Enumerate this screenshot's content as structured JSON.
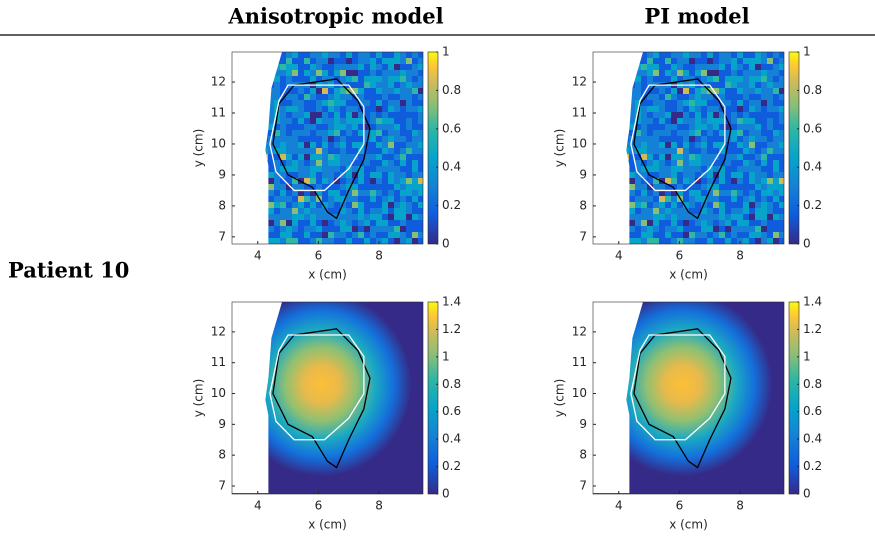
{
  "header": {
    "columns": [
      "Anisotropic model",
      "PI model"
    ]
  },
  "row_label": "Patient 10",
  "panels": [
    {
      "x_label": "x (cm)",
      "y_label": "y (cm)",
      "xlim": [
        3.15,
        9.45
      ],
      "ylim": [
        6.77,
        12.97
      ],
      "xticks": [
        4,
        6,
        8
      ],
      "yticks": [
        7,
        8,
        9,
        10,
        11,
        12
      ],
      "clim": [
        0,
        1
      ],
      "colorbar_ticks": [
        0,
        0.2,
        0.4,
        0.6,
        0.8,
        1
      ]
    },
    {
      "x_label": "x (cm)",
      "y_label": "y (cm)",
      "xlim": [
        3.15,
        9.45
      ],
      "ylim": [
        6.77,
        12.97
      ],
      "xticks": [
        4,
        6,
        8
      ],
      "yticks": [
        7,
        8,
        9,
        10,
        11,
        12
      ],
      "clim": [
        0,
        1
      ],
      "colorbar_ticks": [
        0,
        0.2,
        0.4,
        0.6,
        0.8,
        1
      ]
    },
    {
      "x_label": "x (cm)",
      "y_label": "y (cm)",
      "xlim": [
        3.15,
        9.45
      ],
      "ylim": [
        6.74,
        12.97
      ],
      "xticks": [
        4,
        6,
        8
      ],
      "yticks": [
        7,
        8,
        9,
        10,
        11,
        12
      ],
      "clim": [
        0,
        1.4
      ],
      "colorbar_ticks": [
        0,
        0.2,
        0.4,
        0.6,
        0.8,
        1,
        1.2,
        1.4
      ]
    },
    {
      "x_label": "x (cm)",
      "y_label": "y (cm)",
      "xlim": [
        3.15,
        9.45
      ],
      "ylim": [
        6.74,
        12.97
      ],
      "xticks": [
        4,
        6,
        8
      ],
      "yticks": [
        7,
        8,
        9,
        10,
        11,
        12
      ],
      "clim": [
        0,
        1.4
      ],
      "colorbar_ticks": [
        0,
        0.2,
        0.4,
        0.6,
        0.8,
        1,
        1.2,
        1.4
      ]
    }
  ]
}
